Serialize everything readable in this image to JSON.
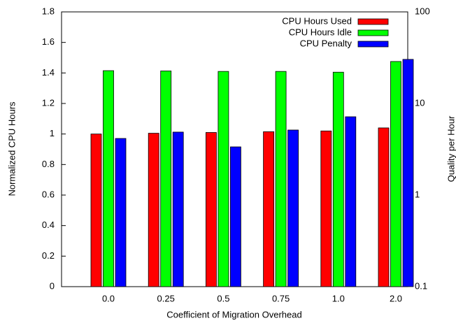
{
  "chart_data": {
    "type": "bar",
    "xlabel": "Coefficient of Migration Overhead",
    "ylabel": "Normalized CPU Hours",
    "y2label": "Quality per Hour",
    "categories": [
      "0.0",
      "0.25",
      "0.5",
      "0.75",
      "1.0",
      "2.0"
    ],
    "series": [
      {
        "name": "CPU Hours Used",
        "color": "#ff0000",
        "values": [
          1.0,
          1.005,
          1.01,
          1.015,
          1.02,
          1.04
        ]
      },
      {
        "name": "CPU Hours Idle",
        "color": "#00ff00",
        "values": [
          1.415,
          1.413,
          1.41,
          1.41,
          1.405,
          1.475
        ]
      },
      {
        "name": "CPU Penalty",
        "color": "#0000ff",
        "axis": "y2",
        "values": [
          4.15,
          4.87,
          3.36,
          5.13,
          7.16,
          30.3
        ]
      }
    ],
    "ylim": [
      0,
      1.8
    ],
    "yticks": [
      0,
      0.2,
      0.4,
      0.6,
      0.8,
      1,
      1.2,
      1.4,
      1.6,
      1.8
    ],
    "y2lim": [
      0.1,
      100
    ],
    "y2ticks": [
      0.1,
      1,
      10,
      100
    ],
    "y2log": true,
    "legend": "top-right"
  }
}
